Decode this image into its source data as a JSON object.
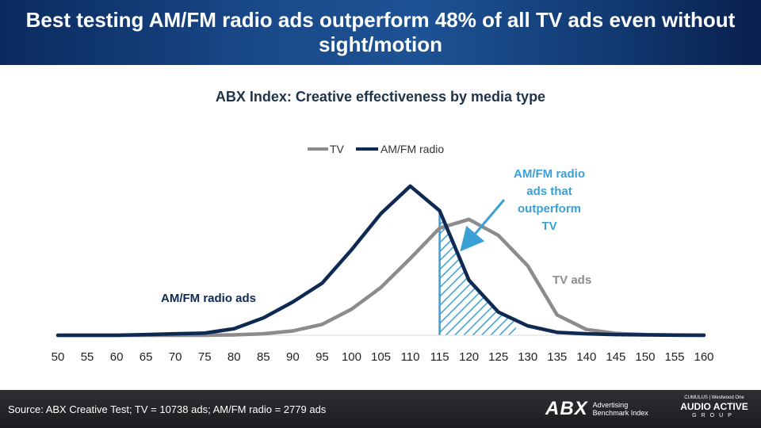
{
  "header": {
    "title": "Best testing AM/FM radio ads outperform 48% of all TV ads even without sight/motion"
  },
  "chart_data": {
    "type": "line",
    "title": "ABX Index: Creative effectiveness by media type",
    "x": [
      50,
      55,
      60,
      65,
      70,
      75,
      80,
      85,
      90,
      95,
      100,
      105,
      110,
      115,
      120,
      125,
      130,
      135,
      140,
      145,
      150,
      155,
      160
    ],
    "series": [
      {
        "name": "TV",
        "color": "#8c8c8c",
        "values": [
          0,
          0,
          0,
          0,
          0,
          0,
          0.3,
          1,
          3,
          7.5,
          18,
          33,
          53,
          74,
          80,
          69,
          48,
          14,
          4,
          1.3,
          0.5,
          0.2,
          0.05
        ]
      },
      {
        "name": "AM/FM radio",
        "color": "#0e2a52",
        "values": [
          0,
          0,
          0,
          0.5,
          1,
          1.5,
          4.5,
          12,
          23,
          36,
          59,
          84,
          103,
          86,
          38,
          16,
          6.5,
          2,
          1,
          0.5,
          0.3,
          0.1,
          0
        ]
      }
    ],
    "ylim": [
      0,
      110
    ],
    "legend_position": "top-center",
    "highlight": {
      "from_x": 115,
      "to_x": 128,
      "color": "#3aa0d6"
    },
    "annotations": [
      {
        "text": "AM/FM radio ads that outperform TV",
        "color": "#3aa0d6"
      },
      {
        "text": "TV ads",
        "color": "#8c8c8c"
      },
      {
        "text": "AM/FM radio ads",
        "color": "#0e2a52"
      }
    ]
  },
  "footer": {
    "source": "Source: ABX Creative Test; TV = 10738 ads; AM/FM radio = 2779 ads",
    "abx_mark": "ABX",
    "abx_line1": "Advertising",
    "abx_line2": "Benchmark Index",
    "aag_top": "CUMULUS | Westwood One",
    "aag_main": "AUDIO ACTIVE",
    "aag_group": "GROUP"
  }
}
